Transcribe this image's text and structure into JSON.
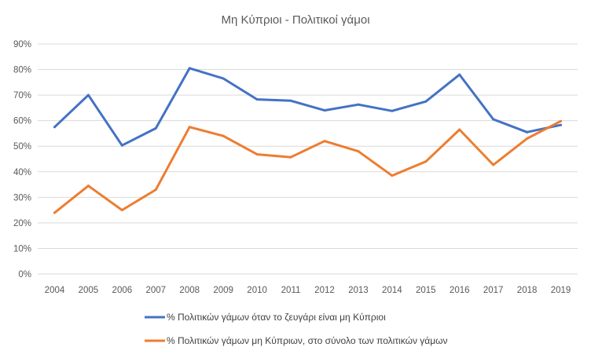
{
  "chart_data": {
    "type": "line",
    "title": "Μη Κύπριοι - Πολιτικοί γάμοι",
    "xlabel": "",
    "ylabel": "",
    "ylim": [
      0,
      90
    ],
    "y_ticks": [
      "0%",
      "10%",
      "20%",
      "30%",
      "40%",
      "50%",
      "60%",
      "70%",
      "80%",
      "90%"
    ],
    "grid": true,
    "legend_position": "bottom",
    "categories": [
      "2004",
      "2005",
      "2006",
      "2007",
      "2008",
      "2009",
      "2010",
      "2011",
      "2012",
      "2013",
      "2014",
      "2015",
      "2016",
      "2017",
      "2018",
      "2019"
    ],
    "series": [
      {
        "name": "% Πολιτικών γάμων όταν το ζευγάρι είναι μη Κύπριοι",
        "color": "#4472c4",
        "values": [
          57.5,
          70,
          50.3,
          57,
          80.5,
          76.5,
          68.3,
          67.8,
          64,
          66.3,
          63.8,
          67.5,
          78,
          60.5,
          55.5,
          58.3
        ]
      },
      {
        "name": "% Πολιτικών γάμων μη Κύπριων, στο σύνολο των πολιτικών γάμων",
        "color": "#ed7d31",
        "values": [
          24,
          34.5,
          25,
          33,
          57.5,
          54,
          46.8,
          45.7,
          52,
          48,
          38.5,
          44,
          56.5,
          42.7,
          53,
          59.8
        ]
      }
    ]
  }
}
